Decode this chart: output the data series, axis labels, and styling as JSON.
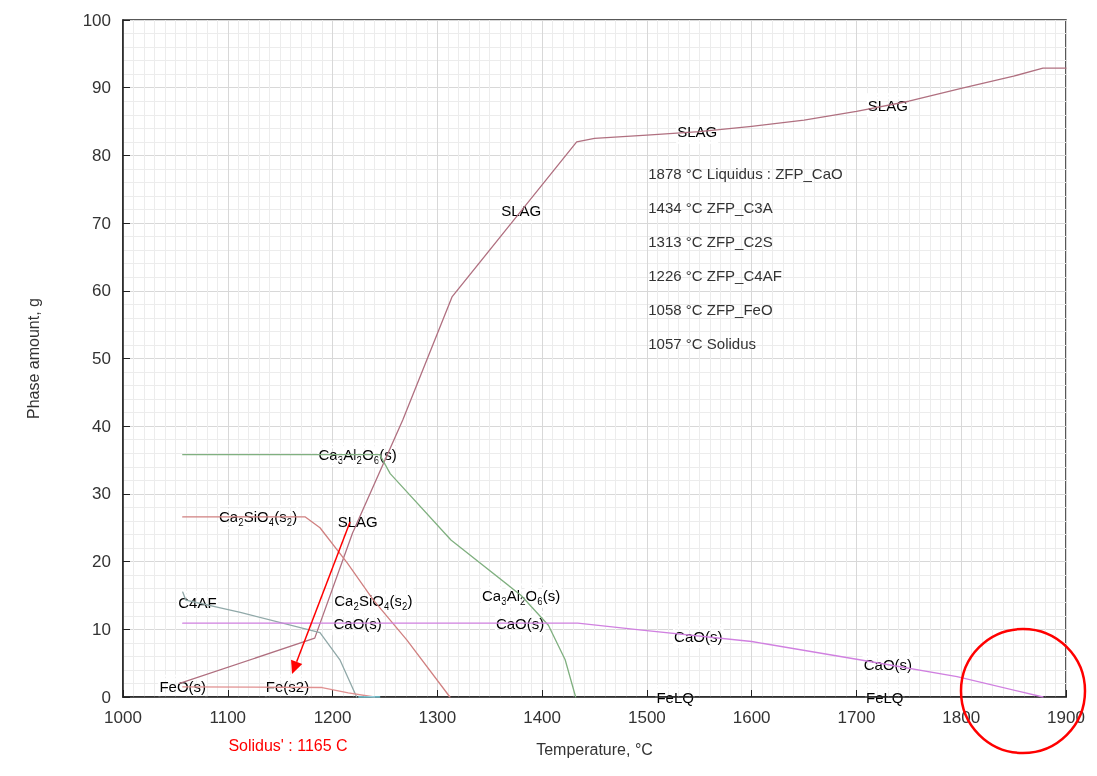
{
  "chart_data": {
    "type": "line",
    "xlabel": "Temperature, °C",
    "ylabel": "Phase amount, g",
    "xlim": [
      1000,
      1900
    ],
    "xticks": [
      1000,
      1100,
      1200,
      1300,
      1400,
      1500,
      1600,
      1700,
      1800,
      1900
    ],
    "ylim": [
      0,
      100
    ],
    "yticks": [
      0,
      10,
      20,
      30,
      40,
      50,
      60,
      70,
      80,
      90,
      100
    ],
    "grid": true,
    "marker": "none",
    "line_style": "solid",
    "series": [
      {
        "color": "#b07080",
        "x": [
          1054,
          1183,
          1219,
          1267,
          1314,
          1433,
          1450,
          1500,
          1550,
          1600,
          1650,
          1700,
          1750,
          1800,
          1850,
          1878,
          1900
        ],
        "values": [
          2,
          8.7,
          24.2,
          40.9,
          59.1,
          82,
          82.5,
          83,
          83.5,
          84.3,
          85.2,
          86.5,
          88,
          89.9,
          91.7,
          92.9,
          92.9
        ]
      },
      {
        "color": "#80b080",
        "x": [
          1057,
          1245,
          1255,
          1313,
          1380,
          1406,
          1422,
          1432
        ],
        "values": [
          35.8,
          35.8,
          33,
          23.2,
          15,
          10.6,
          5.5,
          0
        ]
      },
      {
        "color": "#d08080",
        "x": [
          1057,
          1174,
          1188,
          1214,
          1239,
          1271,
          1312
        ],
        "values": [
          26.6,
          26.6,
          25,
          19.8,
          14.3,
          8.4,
          0
        ]
      },
      {
        "color": "#90a8a8",
        "x": [
          1057,
          1060,
          1112,
          1188,
          1207,
          1223
        ],
        "values": [
          15.5,
          14.3,
          12.5,
          9.5,
          5.5,
          0
        ]
      },
      {
        "color": "#d080e0",
        "x": [
          1057,
          1434,
          1493,
          1600,
          1703,
          1796,
          1878
        ],
        "values": [
          10.9,
          10.9,
          9.9,
          8.2,
          5.5,
          3,
          0
        ]
      },
      {
        "color": "#e09090",
        "x": [
          1057,
          1190,
          1215,
          1240
        ],
        "values": [
          1.5,
          1.4,
          0.6,
          0
        ]
      },
      {
        "color": "#80e0f0",
        "x": [
          1225,
          1245
        ],
        "values": [
          0,
          0
        ]
      }
    ],
    "annotations": [
      "1878 °C Liquidus : ZFP_CaO",
      "1434 °C ZFP_C3A",
      "1313 °C ZFP_C2S",
      "1226 °C ZFP_C4AF",
      "1058 °C ZFP_FeO",
      "1057 °C Solidus",
      {
        "text": "SLAG",
        "x": 1380,
        "y": 71.8
      },
      {
        "text": "SLAG",
        "x": 1224,
        "y": 25.9
      },
      {
        "text": "SLAG",
        "x": 1548,
        "y": 83.5
      },
      {
        "text": "SLAG",
        "x": 1730,
        "y": 87.4
      },
      {
        "text": "Ca$_{3}$Al$_{2}$O$_{6}$(s)",
        "x": 1224,
        "y": 35.8
      },
      {
        "text": "Ca$_{3}$Al$_{2}$O$_{6}$(s)",
        "x": 1380,
        "y": 15
      },
      {
        "text": "Ca$_{2}$SiO$_{4}$(s$_{2}$)",
        "x": 1129,
        "y": 26.6
      },
      {
        "text": "Ca$_{2}$SiO$_{4}$(s$_{2}$)",
        "x": 1239,
        "y": 14.3
      },
      {
        "text": "C4AF",
        "x": 1071,
        "y": 13.9
      },
      {
        "text": "CaO(s)",
        "x": 1224,
        "y": 10.9
      },
      {
        "text": "CaO(s)",
        "x": 1379,
        "y": 10.9
      },
      {
        "text": "CaO(s)",
        "x": 1549,
        "y": 9
      },
      {
        "text": "CaO(s)",
        "x": 1730,
        "y": 4.8
      },
      {
        "text": "FeO(s)",
        "x": 1057,
        "y": 1.5
      },
      {
        "text": "Fe(s2)",
        "x": 1157,
        "y": 1.5
      },
      {
        "text": "FeLQ",
        "x": 1527,
        "y": 0
      },
      {
        "text": "FeLQ",
        "x": 1727,
        "y": 0
      },
      "Solidus' : 1165 C"
    ]
  }
}
